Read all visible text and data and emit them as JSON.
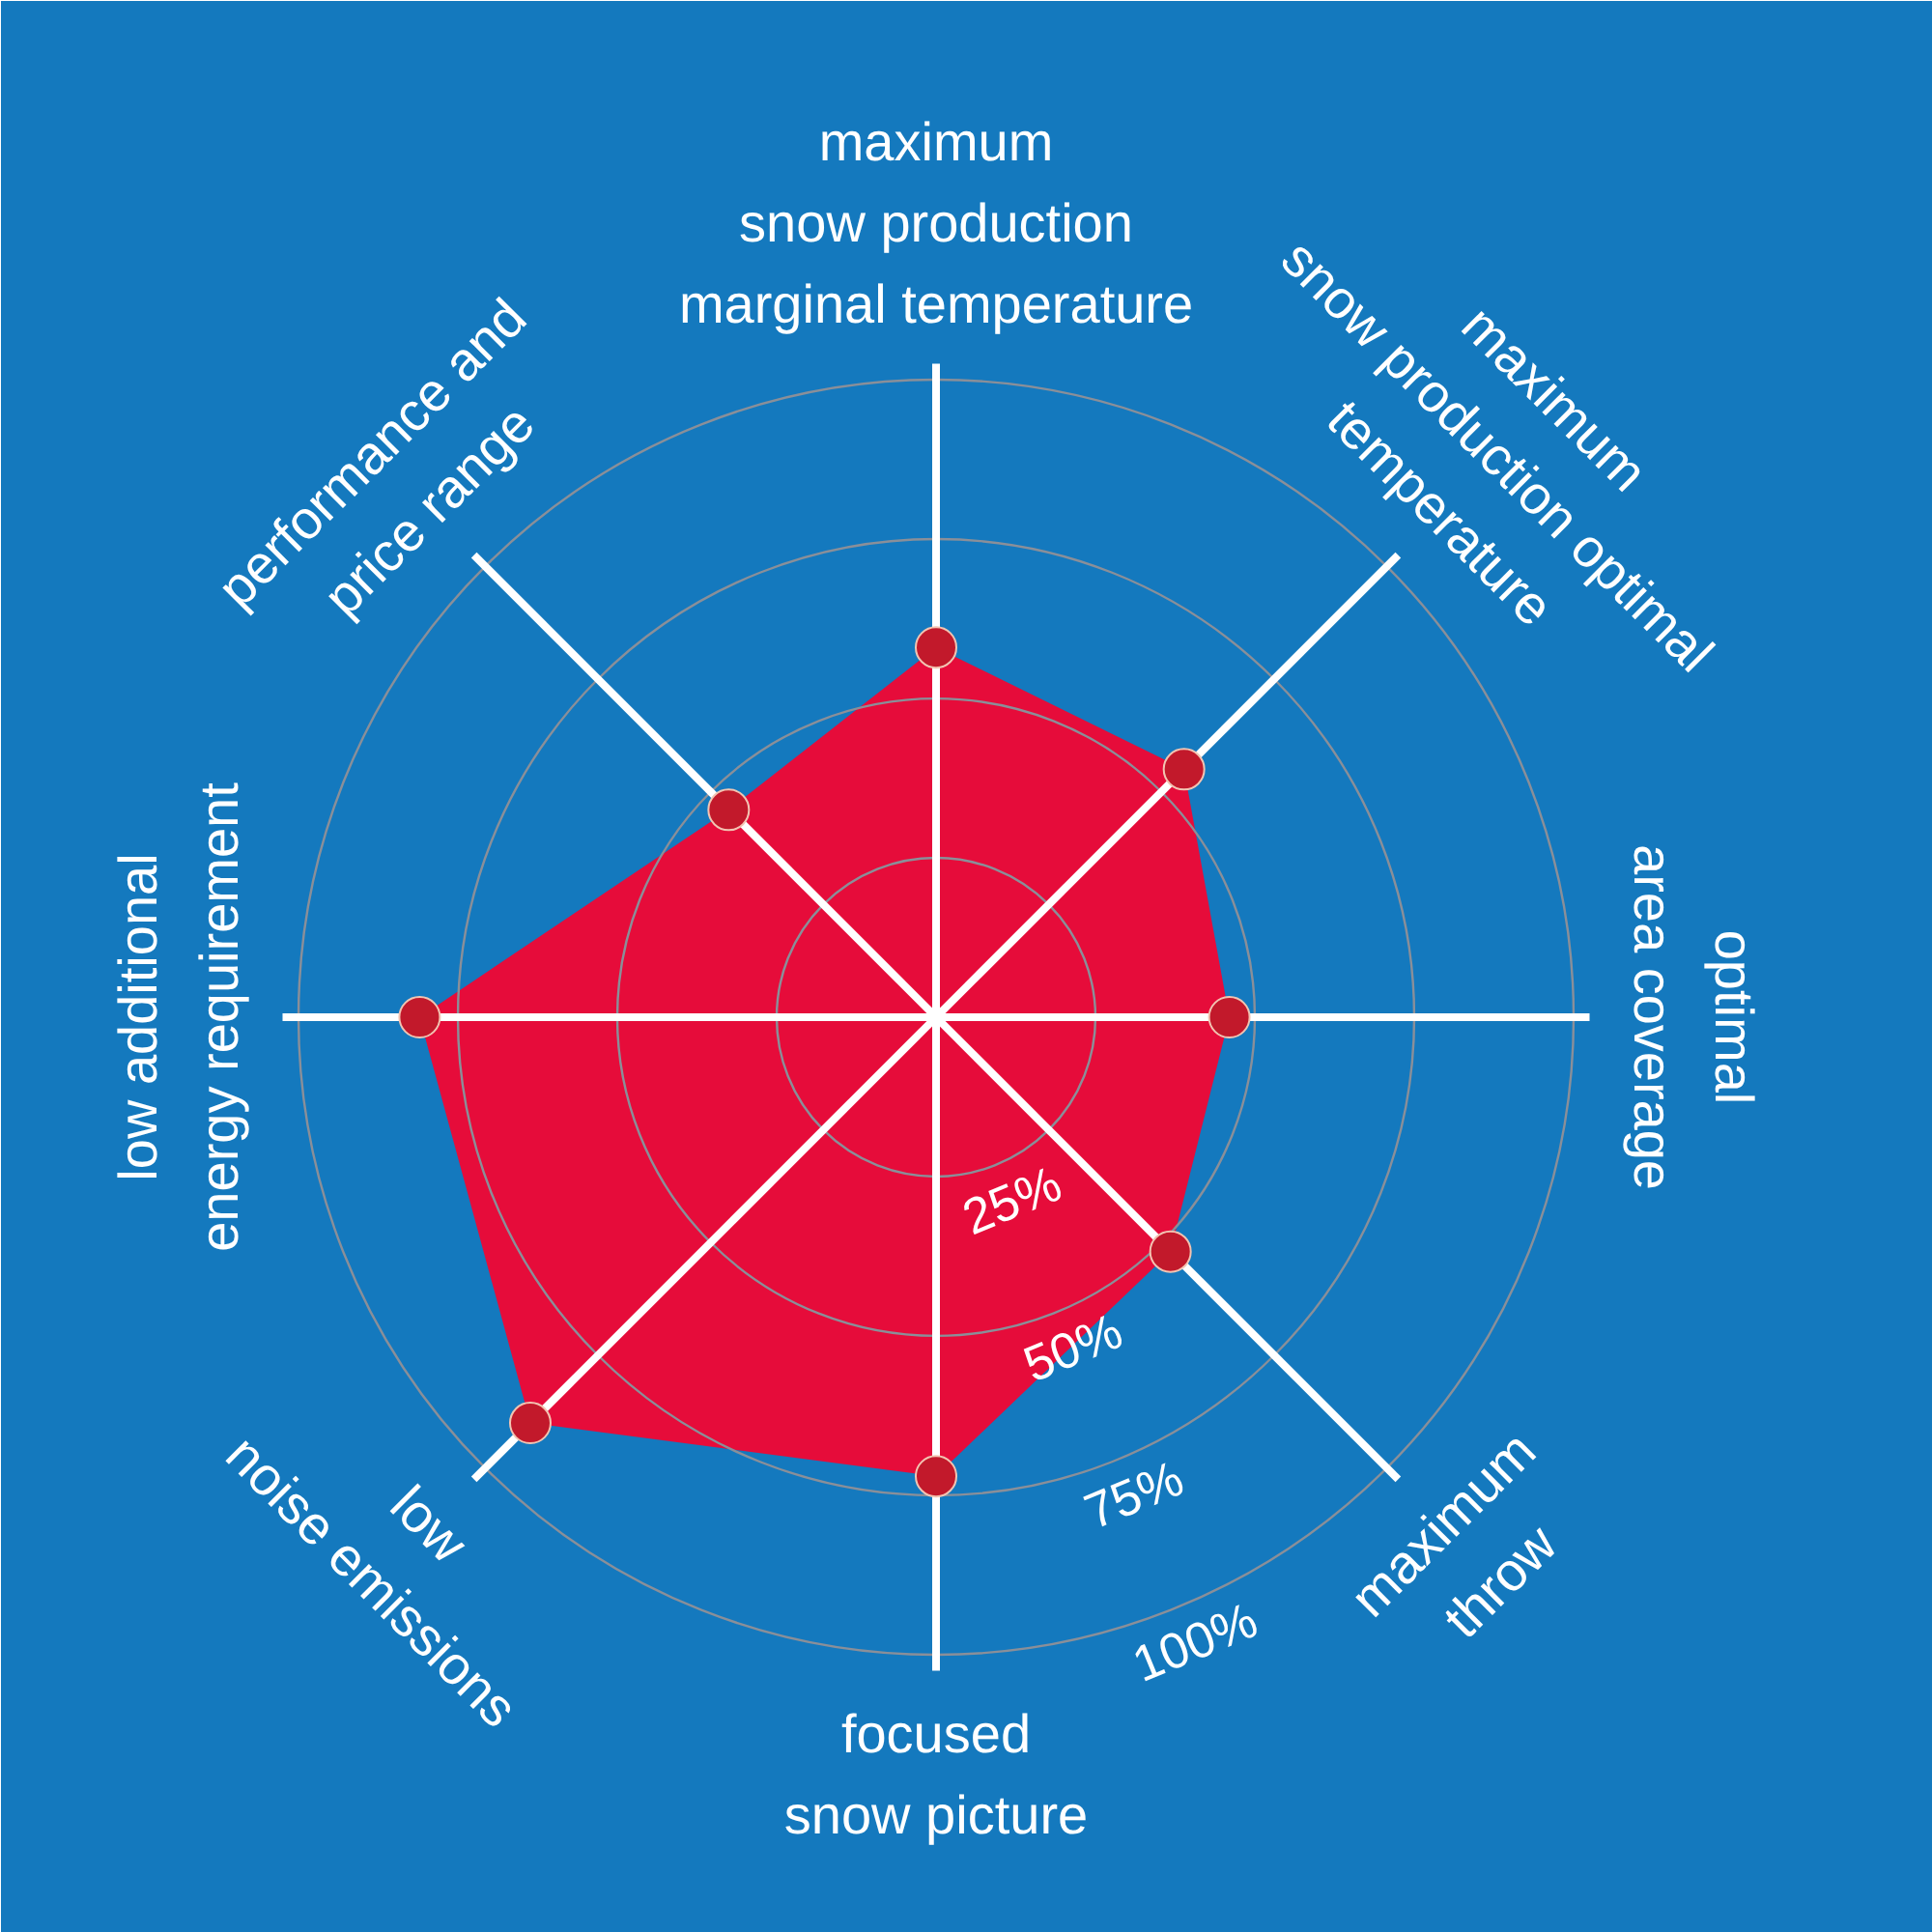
{
  "chart_data": {
    "type": "radar",
    "categories": [
      "maximum\nsnow production\nmarginal temperature",
      "maximum\nsnow production optimal\ntemperature",
      "optimal\narea coverage",
      "maximum\nthrow",
      "focused\nsnow picture",
      "low\nnoise emissions",
      "low additional\nenergy requirement",
      "performance and\nprice range"
    ],
    "series": [
      {
        "color": "#e60c3a",
        "colors": [
          "#c2192b",
          "#c2192b",
          "#c2192b",
          "#c2192b",
          "#c2192b",
          "#c2192b",
          "#c2192b",
          "#c2192b"
        ],
        "values": [
          58,
          55,
          46,
          52,
          72,
          90,
          81,
          46
        ]
      }
    ],
    "ylim": [
      0,
      100
    ],
    "yticks": [
      {
        "value": 25,
        "label": "25%"
      },
      {
        "value": 50,
        "label": "50%"
      },
      {
        "value": 75,
        "label": "75%"
      },
      {
        "value": 100,
        "label": "100%"
      }
    ],
    "grid": true,
    "marker": "circle"
  }
}
